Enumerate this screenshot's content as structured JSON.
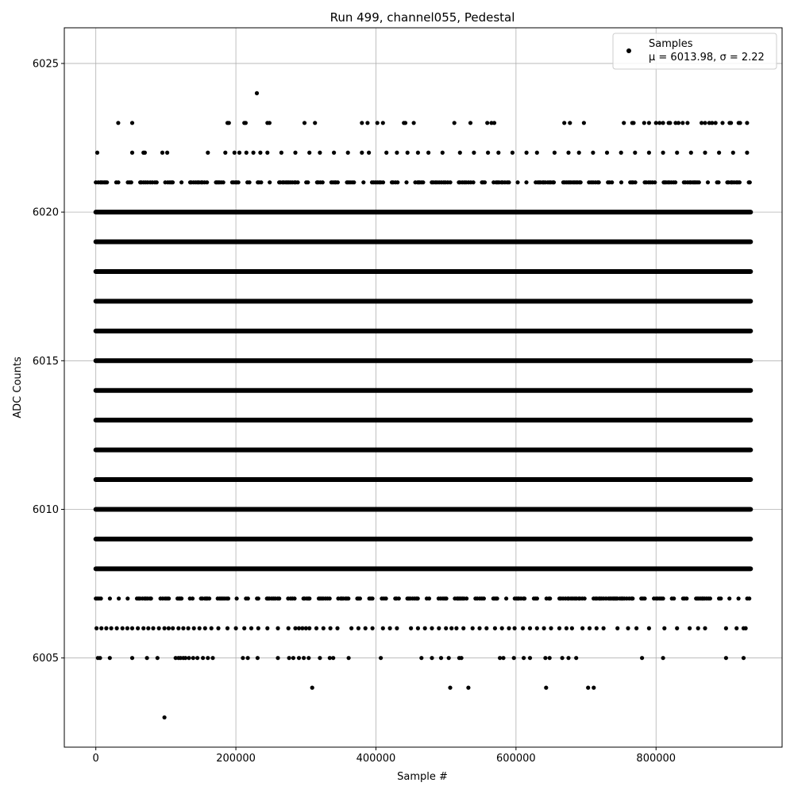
{
  "chart_data": {
    "type": "scatter",
    "title": "Run 499, channel055, Pedestal",
    "xlabel": "Sample #",
    "ylabel": "ADC Counts",
    "xlim": [
      -45000,
      980000
    ],
    "ylim": [
      6002,
      6026.2
    ],
    "xticks": [
      0,
      200000,
      400000,
      600000,
      800000
    ],
    "xtick_labels": [
      "0",
      "200000",
      "400000",
      "600000",
      "800000"
    ],
    "yticks": [
      6005,
      6010,
      6015,
      6020,
      6025
    ],
    "ytick_labels": [
      "6005",
      "6010",
      "6015",
      "6020",
      "6025"
    ],
    "grid": true,
    "legend": {
      "placement": "top-right",
      "series_label": "Samples",
      "stats_label": "μ = 6013.98, σ = 2.22"
    },
    "marker_color": "#000000",
    "n_samples_approx": 935000,
    "series": [
      {
        "name": "Samples",
        "dense_levels": [
          {
            "y": 6007,
            "x_range": [
              0,
              935000
            ],
            "density": "medium"
          },
          {
            "y": 6008,
            "x_range": [
              0,
              935000
            ],
            "density": "continuous"
          },
          {
            "y": 6009,
            "x_range": [
              0,
              935000
            ],
            "density": "continuous"
          },
          {
            "y": 6010,
            "x_range": [
              0,
              935000
            ],
            "density": "continuous"
          },
          {
            "y": 6011,
            "x_range": [
              0,
              935000
            ],
            "density": "continuous"
          },
          {
            "y": 6012,
            "x_range": [
              0,
              935000
            ],
            "density": "continuous"
          },
          {
            "y": 6013,
            "x_range": [
              0,
              935000
            ],
            "density": "continuous"
          },
          {
            "y": 6014,
            "x_range": [
              0,
              935000
            ],
            "density": "continuous"
          },
          {
            "y": 6015,
            "x_range": [
              0,
              935000
            ],
            "density": "continuous"
          },
          {
            "y": 6016,
            "x_range": [
              0,
              935000
            ],
            "density": "continuous"
          },
          {
            "y": 6017,
            "x_range": [
              0,
              935000
            ],
            "density": "continuous"
          },
          {
            "y": 6018,
            "x_range": [
              0,
              935000
            ],
            "density": "continuous"
          },
          {
            "y": 6019,
            "x_range": [
              0,
              935000
            ],
            "density": "continuous"
          },
          {
            "y": 6020,
            "x_range": [
              0,
              935000
            ],
            "density": "continuous"
          },
          {
            "y": 6021,
            "x_range": [
              0,
              935000
            ],
            "density": "medium"
          }
        ],
        "sparse_levels": [
          {
            "y": 6006,
            "x": [
              1000,
              8000,
              15000,
              22000,
              30000,
              38000,
              45000,
              52000,
              60000,
              68000,
              75000,
              82000,
              90000,
              98000,
              104000,
              110000,
              118000,
              125000,
              132000,
              140000,
              148000,
              156000,
              165000,
              175000,
              188000,
              200000,
              212000,
              222000,
              232000,
              245000,
              260000,
              275000,
              285000,
              290000,
              295000,
              300000,
              305000,
              315000,
              325000,
              335000,
              345000,
              365000,
              375000,
              385000,
              395000,
              410000,
              420000,
              430000,
              450000,
              460000,
              470000,
              480000,
              490000,
              500000,
              508000,
              515000,
              525000,
              538000,
              548000,
              558000,
              570000,
              580000,
              590000,
              598000,
              610000,
              620000,
              630000,
              640000,
              650000,
              662000,
              672000,
              680000,
              695000,
              705000,
              715000,
              725000,
              745000,
              760000,
              772000,
              790000,
              812000,
              830000,
              848000,
              860000,
              870000,
              900000,
              915000,
              925000,
              928000
            ]
          },
          {
            "y": 6022,
            "x": [
              2000,
              52000,
              68000,
              70000,
              95000,
              102000,
              160000,
              185000,
              198000,
              205000,
              215000,
              225000,
              235000,
              245000,
              265000,
              285000,
              305000,
              320000,
              340000,
              360000,
              380000,
              390000,
              415000,
              430000,
              445000,
              460000,
              475000,
              495000,
              520000,
              540000,
              560000,
              575000,
              595000,
              615000,
              630000,
              655000,
              675000,
              690000,
              710000,
              730000,
              750000,
              770000,
              790000,
              810000,
              830000,
              850000,
              870000,
              890000,
              910000,
              930000
            ]
          },
          {
            "y": 6023,
            "x": [
              32000,
              52000,
              188000,
              190000,
              212000,
              214000,
              245000,
              248000,
              298000,
              313000,
              380000,
              388000,
              402000,
              410000,
              440000,
              442000,
              454000,
              512000,
              535000,
              559000,
              565000,
              569000,
              669000,
              677000,
              697000,
              754000,
              766000,
              768000,
              783000,
              790000,
              800000,
              805000,
              810000,
              818000,
              820000,
              828000,
              832000,
              838000,
              845000,
              865000,
              870000,
              876000,
              880000,
              885000,
              895000,
              905000,
              907000,
              918000,
              920000,
              930000
            ]
          },
          {
            "y": 6024,
            "x": [
              230000
            ]
          },
          {
            "y": 6005,
            "x": [
              3000,
              6000,
              20000,
              52000,
              73000,
              88000,
              114000,
              118000,
              121000,
              125000,
              128000,
              133000,
              139000,
              145000,
              153000,
              160000,
              167000,
              210000,
              217000,
              231000,
              260000,
              276000,
              282000,
              290000,
              297000,
              304000,
              320000,
              334000,
              339000,
              361000,
              407000,
              465000,
              480000,
              493000,
              504000,
              519000,
              522000,
              577000,
              582000,
              597000,
              611000,
              620000,
              642000,
              648000,
              666000,
              675000,
              686000,
              780000,
              810000,
              900000,
              925000
            ]
          },
          {
            "y": 6004,
            "x": [
              309000,
              506000,
              532000,
              643000,
              703000,
              711000
            ]
          },
          {
            "y": 6003,
            "x": [
              98000
            ]
          }
        ]
      }
    ]
  }
}
